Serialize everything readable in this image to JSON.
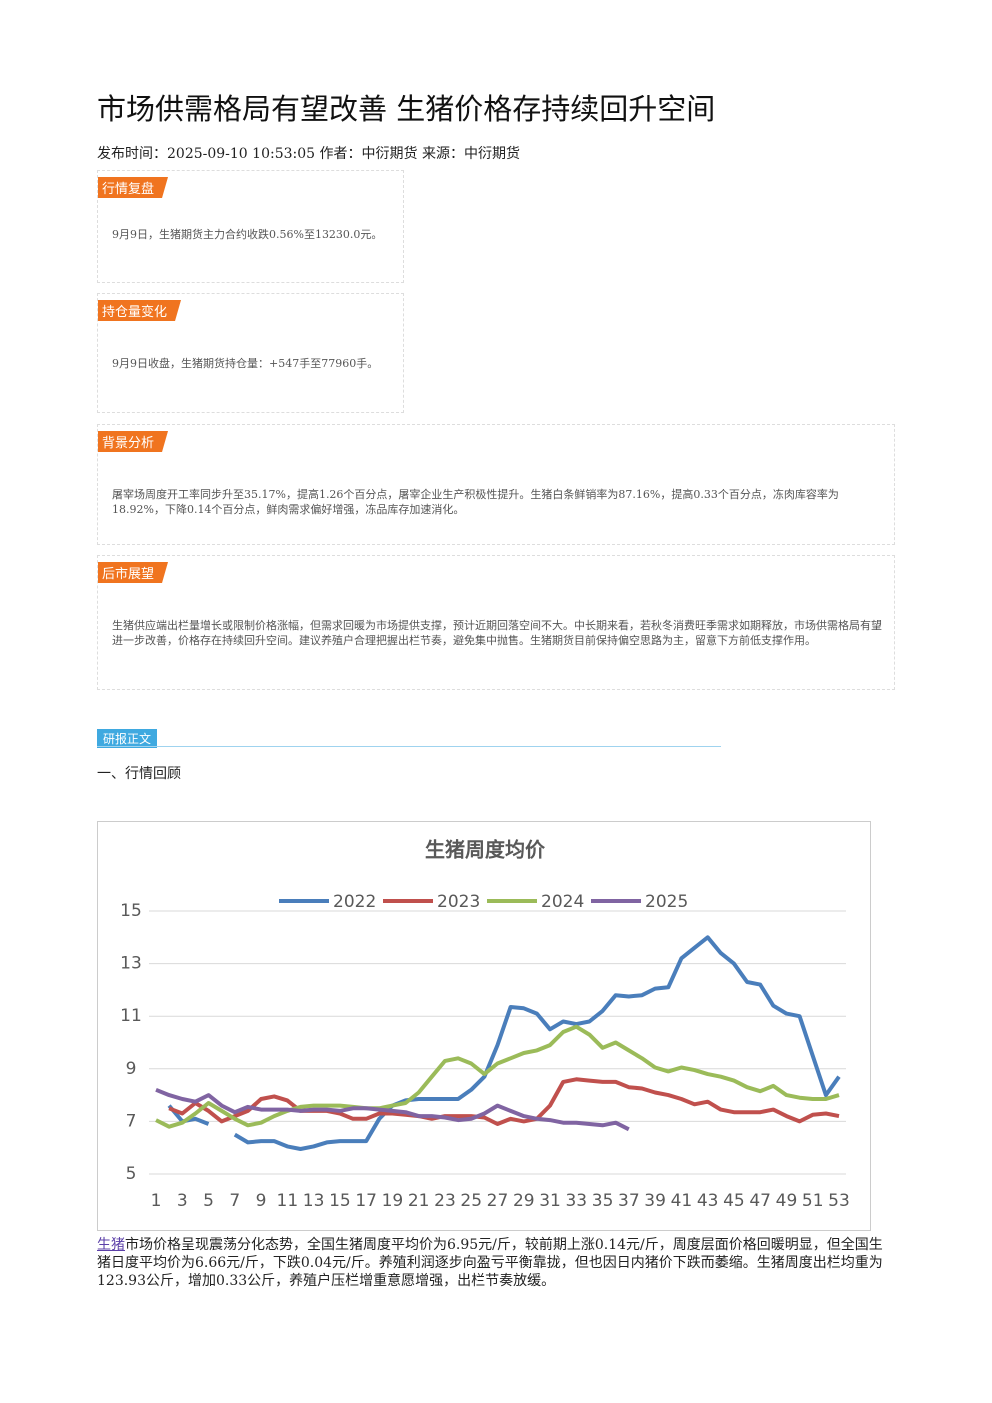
{
  "title": "市场供需格局有望改善 生猪价格存持续回升空间",
  "meta": "发布时间：2025-09-10 10:53:05 作者：中衍期货 来源：中衍期货",
  "sections": [
    {
      "label": "行情复盘",
      "text": "9月9日，生猪期货主力合约收跌0.56%至13230.0元。"
    },
    {
      "label": "持仓量变化",
      "text": "9月9日收盘，生猪期货持仓量：+547手至77960手。"
    },
    {
      "label": "背景分析",
      "text": "屠宰场周度开工率同步升至35.17%，提高1.26个百分点，屠宰企业生产积极性提升。生猪白条鲜销率为87.16%，提高0.33个百分点，冻肉库容率为18.92%，下降0.14个百分点，鲜肉需求偏好增强，冻品库存加速消化。"
    },
    {
      "label": "后市展望",
      "text": "生猪供应端出栏量增长或限制价格涨幅，但需求回暖为市场提供支撑，预计近期回落空间不大。中长期来看，若秋冬消费旺季需求如期释放，市场供需格局有望进一步改善，价格存在持续回升空间。建议养殖户合理把握出栏节奏，避免集中抛售。生猪期货目前保持偏空思路为主，留意下方前低支撑作用。"
    }
  ],
  "report_tag": "研报正文",
  "heading": "一、行情回顾",
  "chart_data": {
    "type": "line",
    "title": "生猪周度均价",
    "x": [
      1,
      2,
      3,
      4,
      5,
      6,
      7,
      8,
      9,
      10,
      11,
      12,
      13,
      14,
      15,
      16,
      17,
      18,
      19,
      20,
      21,
      22,
      23,
      24,
      25,
      26,
      27,
      28,
      29,
      30,
      31,
      32,
      33,
      34,
      35,
      36,
      37,
      38,
      39,
      40,
      41,
      42,
      43,
      44,
      45,
      46,
      47,
      48,
      49,
      50,
      51,
      52,
      53
    ],
    "xlim": [
      1,
      53
    ],
    "xticks": [
      1,
      3,
      5,
      7,
      9,
      11,
      13,
      15,
      17,
      19,
      21,
      23,
      25,
      27,
      29,
      31,
      33,
      35,
      37,
      39,
      41,
      43,
      45,
      47,
      49,
      51,
      53
    ],
    "ylim": [
      5,
      15
    ],
    "yticks": [
      5,
      7,
      9,
      11,
      13,
      15
    ],
    "grid": true,
    "series": [
      {
        "name": "2022",
        "color": "#4a7ebb",
        "values": [
          null,
          7.6,
          7.0,
          7.1,
          6.9,
          null,
          6.5,
          6.2,
          6.25,
          6.25,
          6.05,
          5.95,
          6.05,
          6.2,
          6.25,
          6.25,
          6.25,
          7.1,
          7.6,
          7.8,
          7.85,
          7.85,
          7.85,
          7.85,
          8.2,
          8.7,
          9.9,
          11.35,
          11.3,
          11.1,
          10.5,
          10.8,
          10.7,
          10.8,
          11.2,
          11.8,
          11.75,
          11.8,
          12.05,
          12.1,
          13.2,
          13.6,
          14.0,
          13.4,
          13.0,
          12.3,
          12.2,
          11.4,
          11.1,
          11.0,
          9.5,
          8.0,
          8.7
        ]
      },
      {
        "name": "2023",
        "color": "#c0504d",
        "values": [
          null,
          7.5,
          7.3,
          7.7,
          7.4,
          7.0,
          7.2,
          7.4,
          7.85,
          7.95,
          7.8,
          7.4,
          7.4,
          7.4,
          7.3,
          7.1,
          7.1,
          7.3,
          7.3,
          7.25,
          7.2,
          7.1,
          7.2,
          7.2,
          7.2,
          7.15,
          6.9,
          7.1,
          7.0,
          7.1,
          7.6,
          8.5,
          8.6,
          8.55,
          8.5,
          8.5,
          8.3,
          8.25,
          8.1,
          8.0,
          7.85,
          7.65,
          7.75,
          7.45,
          7.35,
          7.35,
          7.35,
          7.45,
          7.2,
          7.0,
          7.25,
          7.3,
          7.2
        ]
      },
      {
        "name": "2024",
        "color": "#9bbb59",
        "values": [
          7.05,
          6.8,
          6.95,
          7.3,
          7.7,
          7.4,
          7.1,
          6.85,
          6.95,
          7.2,
          7.4,
          7.55,
          7.6,
          7.6,
          7.6,
          7.55,
          7.5,
          7.5,
          7.6,
          7.7,
          8.1,
          8.7,
          9.3,
          9.4,
          9.2,
          8.8,
          9.2,
          9.4,
          9.6,
          9.7,
          9.9,
          10.4,
          10.6,
          10.3,
          9.8,
          10.0,
          9.7,
          9.4,
          9.05,
          8.9,
          9.05,
          8.95,
          8.8,
          8.7,
          8.55,
          8.3,
          8.15,
          8.35,
          8.0,
          7.9,
          7.85,
          7.85,
          8.0
        ]
      },
      {
        "name": "2025",
        "color": "#8064a2",
        "values": [
          8.2,
          8.0,
          7.85,
          7.75,
          8.0,
          7.6,
          7.35,
          7.55,
          7.45,
          7.45,
          7.45,
          7.4,
          7.45,
          7.45,
          7.4,
          7.5,
          7.5,
          7.45,
          7.4,
          7.35,
          7.2,
          7.2,
          7.15,
          7.05,
          7.1,
          7.3,
          7.6,
          7.4,
          7.2,
          7.1,
          7.05,
          6.95,
          6.95,
          6.9,
          6.85,
          6.95,
          6.7,
          null,
          null,
          null,
          null,
          null,
          null,
          null,
          null,
          null,
          null,
          null,
          null,
          null,
          null,
          null,
          null
        ]
      }
    ]
  },
  "body": {
    "link": "生猪",
    "text": "市场价格呈现震荡分化态势，全国生猪周度平均价为6.95元/斤，较前期上涨0.14元/斤，周度层面价格回暖明显，但全国生猪日度平均价为6.66元/斤，下跌0.04元/斤。养殖利润逐步向盈亏平衡靠拢，但也因日内猪价下跌而萎缩。生猪周度出栏均重为123.93公斤，增加0.33公斤，养殖户压栏增重意愿增强，出栏节奏放缓。"
  }
}
